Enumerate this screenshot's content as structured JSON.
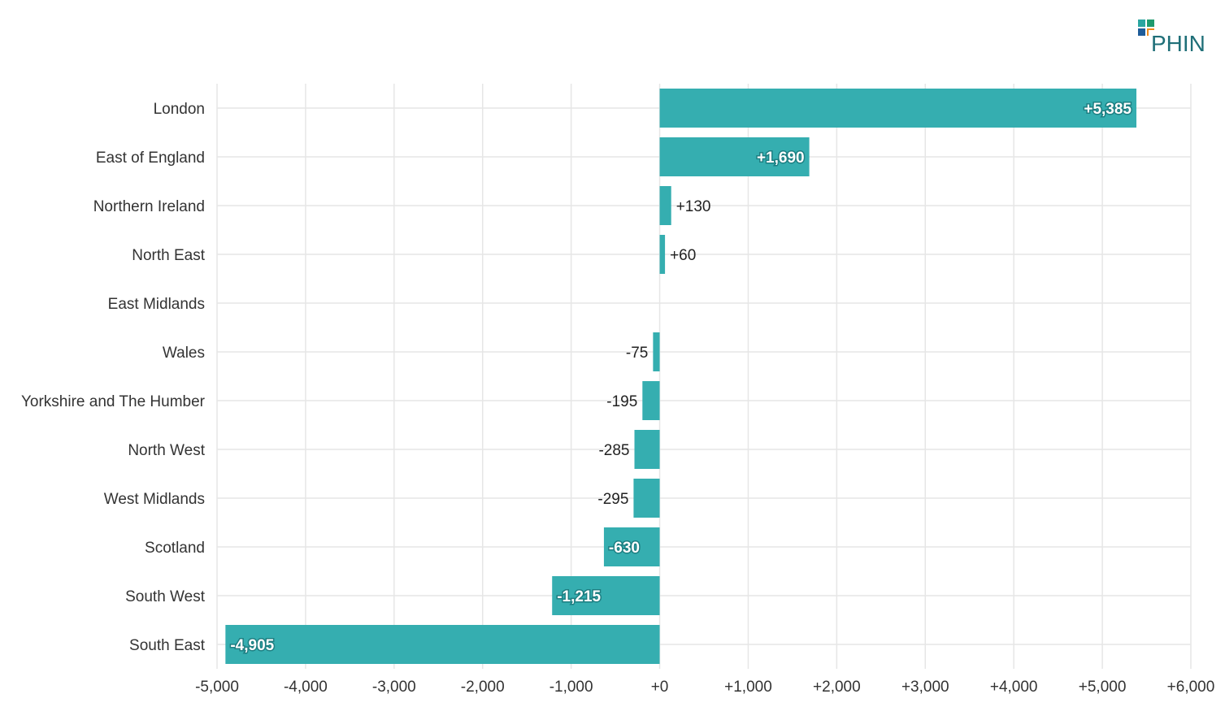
{
  "logo": {
    "text": "PHIN",
    "colors": [
      "#2aa5a0",
      "#1e9a6e",
      "#1f5c99",
      "#f08a1c"
    ]
  },
  "chart_data": {
    "type": "bar",
    "orientation": "horizontal",
    "categories": [
      "London",
      "East of England",
      "Northern Ireland",
      "North East",
      "East Midlands",
      "Wales",
      "Yorkshire and The Humber",
      "North West",
      "West Midlands",
      "Scotland",
      "South West",
      "South East"
    ],
    "values": [
      5385,
      1690,
      130,
      60,
      null,
      -75,
      -195,
      -285,
      -295,
      -630,
      -1215,
      -4905
    ],
    "data_labels": [
      "+5,385",
      "+1,690",
      "+130",
      "+60",
      "",
      "-75",
      "-195",
      "-285",
      "-295",
      "-630",
      "-1,215",
      "-4,905"
    ],
    "xlim": [
      -5000,
      6000
    ],
    "xticks": [
      -5000,
      -4000,
      -3000,
      -2000,
      -1000,
      0,
      1000,
      2000,
      3000,
      4000,
      5000,
      6000
    ],
    "xtick_labels": [
      "-5,000",
      "-4,000",
      "-3,000",
      "-2,000",
      "-1,000",
      "+0",
      "+1,000",
      "+2,000",
      "+3,000",
      "+4,000",
      "+5,000",
      "+6,000"
    ],
    "title": "",
    "xlabel": "",
    "ylabel": "",
    "grid": true,
    "bar_color": "#35aeb0"
  }
}
